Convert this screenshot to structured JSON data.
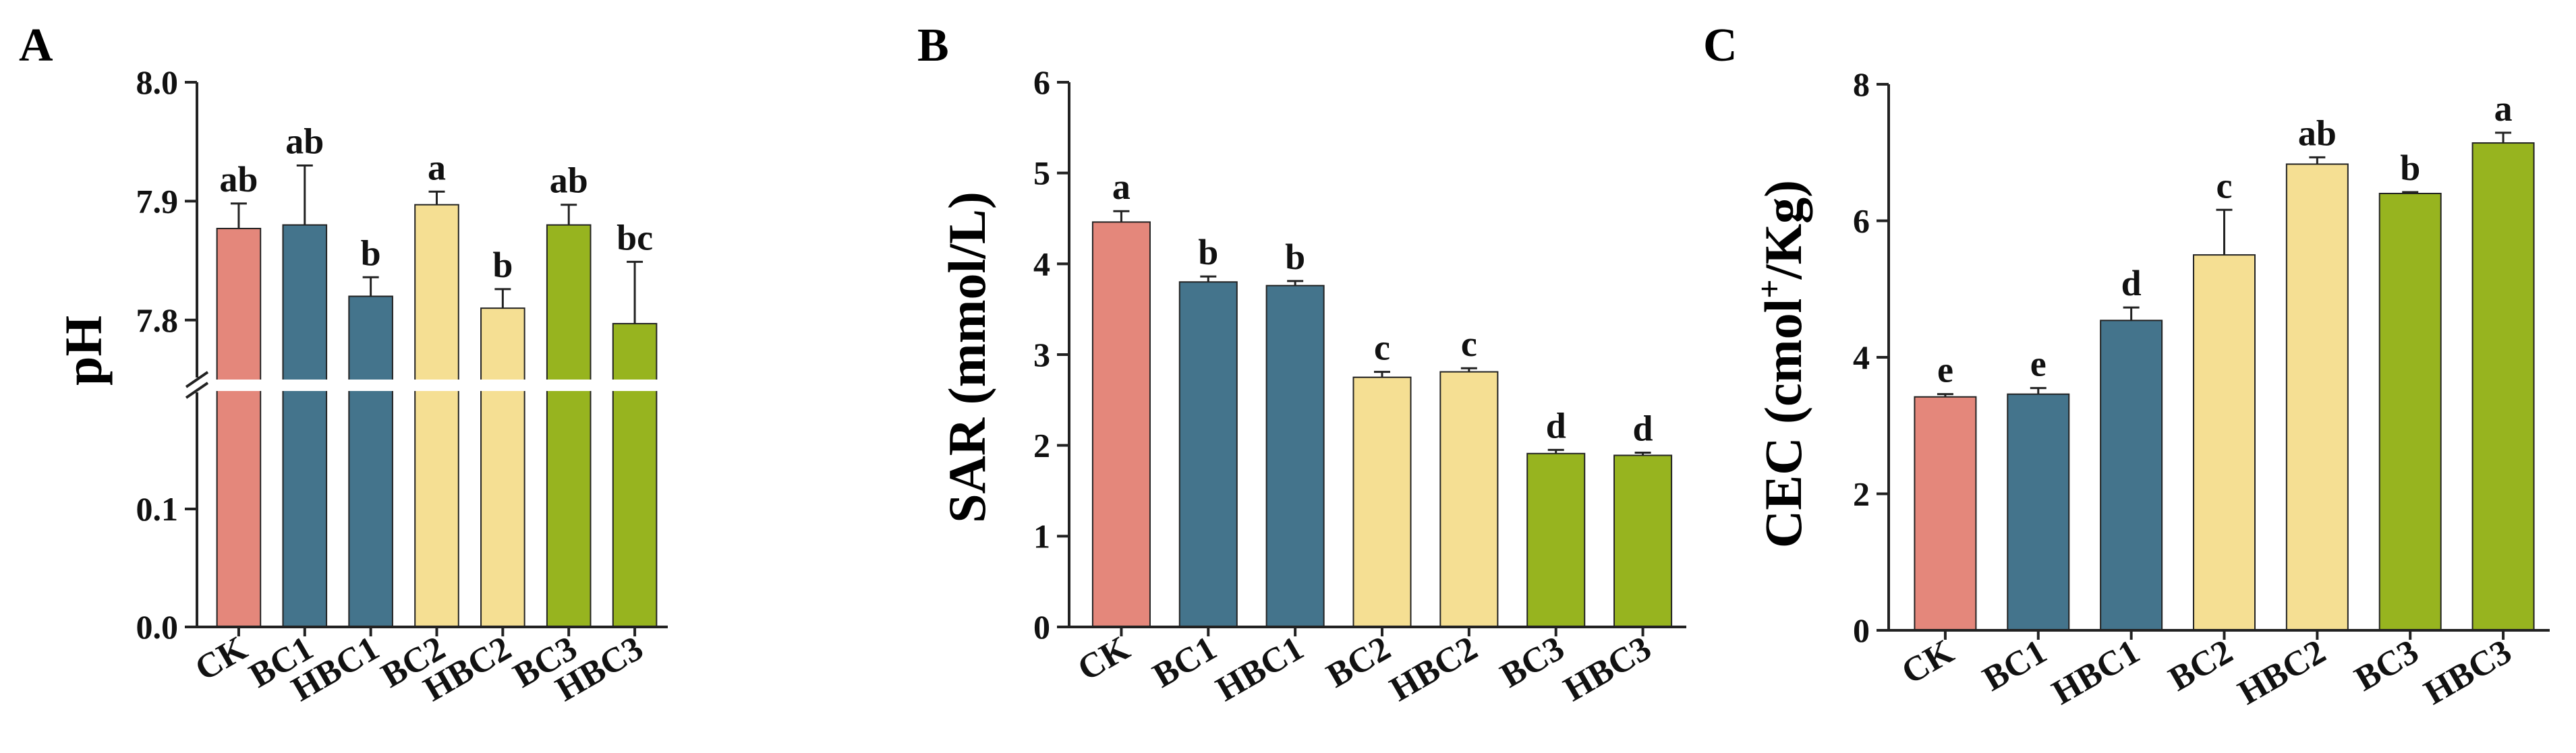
{
  "chart_data": [
    {
      "panel_label": "A",
      "type": "bar",
      "title": "",
      "ylabel": "pH",
      "xlabel": "",
      "categories": [
        "CK",
        "BC1",
        "HBC1",
        "BC2",
        "HBC2",
        "BC3",
        "HBC3"
      ],
      "values": [
        7.877,
        7.88,
        7.82,
        7.897,
        7.81,
        7.88,
        7.797
      ],
      "errors": [
        0.021,
        0.05,
        0.016,
        0.011,
        0.016,
        0.017,
        0.052
      ],
      "letters": [
        "ab",
        "ab",
        "b",
        "a",
        "b",
        "ab",
        "bc"
      ],
      "colors": [
        "#E4877B",
        "#44748C",
        "#44748C",
        "#F5DF93",
        "#F5DF93",
        "#97B41F",
        "#97B41F"
      ],
      "axis_break": true,
      "lower_segment": {
        "ylim": [
          0.0,
          0.2
        ],
        "ticks": [
          "0.0",
          "0.1"
        ]
      },
      "upper_segment": {
        "ylim": [
          7.75,
          8.0
        ],
        "ticks": [
          "7.8",
          "7.9",
          "8.0"
        ]
      }
    },
    {
      "panel_label": "B",
      "type": "bar",
      "title": "",
      "ylabel": "SAR (mmol/L)",
      "xlabel": "",
      "categories": [
        "CK",
        "BC1",
        "HBC1",
        "BC2",
        "HBC2",
        "BC3",
        "HBC3"
      ],
      "values": [
        4.46,
        3.8,
        3.76,
        2.75,
        2.81,
        1.91,
        1.89
      ],
      "errors": [
        0.12,
        0.06,
        0.05,
        0.06,
        0.04,
        0.04,
        0.03
      ],
      "letters": [
        "a",
        "b",
        "b",
        "c",
        "c",
        "d",
        "d"
      ],
      "colors": [
        "#E4877B",
        "#44748C",
        "#44748C",
        "#F5DF93",
        "#F5DF93",
        "#97B41F",
        "#97B41F"
      ],
      "ylim": [
        0,
        6
      ],
      "ticks": [
        "0",
        "1",
        "2",
        "3",
        "4",
        "5",
        "6"
      ]
    },
    {
      "panel_label": "C",
      "type": "bar",
      "title": "",
      "ylabel_main": "CEC (cmol",
      "ylabel_sup": "+",
      "ylabel_tail": "/Kg)",
      "xlabel": "",
      "categories": [
        "CK",
        "BC1",
        "HBC1",
        "BC2",
        "HBC2",
        "BC3",
        "HBC3"
      ],
      "values": [
        3.42,
        3.46,
        4.54,
        5.5,
        6.83,
        6.4,
        7.14
      ],
      "errors": [
        0.04,
        0.09,
        0.19,
        0.66,
        0.1,
        0.02,
        0.15
      ],
      "letters": [
        "e",
        "e",
        "d",
        "c",
        "ab",
        "b",
        "a"
      ],
      "colors": [
        "#E4877B",
        "#44748C",
        "#44748C",
        "#F5DF93",
        "#F5DF93",
        "#97B41F",
        "#97B41F"
      ],
      "ylim": [
        0,
        8
      ],
      "ticks": [
        "0",
        "2",
        "4",
        "6",
        "8"
      ]
    }
  ]
}
